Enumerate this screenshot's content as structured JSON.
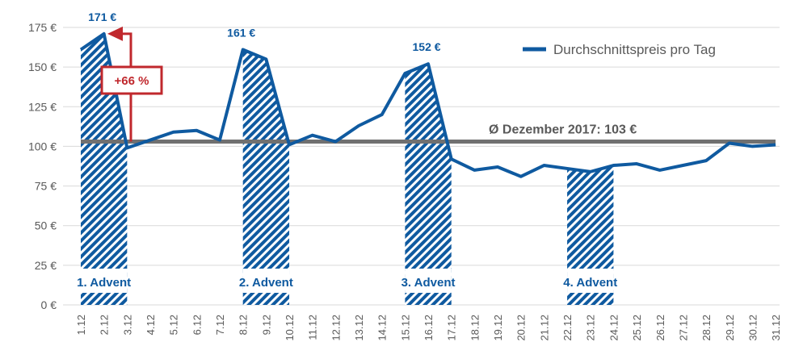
{
  "chart_data": {
    "type": "line",
    "title": "",
    "xlabel": "",
    "ylabel": "",
    "ylim": [
      0,
      175
    ],
    "yticks": [
      0,
      25,
      50,
      75,
      100,
      125,
      150,
      175
    ],
    "ytick_labels": [
      "0 €",
      "25 €",
      "50 €",
      "75 €",
      "100 €",
      "125 €",
      "150 €",
      "175 €"
    ],
    "categories": [
      "1.12",
      "2.12",
      "3.12",
      "4.12",
      "5.12",
      "6.12",
      "7.12",
      "8.12",
      "9.12",
      "10.12",
      "11.12",
      "12.12",
      "13.12",
      "14.12",
      "15.12",
      "16.12",
      "17.12",
      "18.12",
      "19.12",
      "20.12",
      "21.12",
      "22.12",
      "23.12",
      "24.12",
      "25.12",
      "26.12",
      "27.12",
      "28.12",
      "29.12",
      "30.12",
      "31.12"
    ],
    "series": [
      {
        "name": "Durchschnittspreis pro Tag",
        "color": "#0f5aa0",
        "values": [
          161,
          171,
          99,
          104,
          109,
          110,
          104,
          161,
          155,
          101,
          107,
          103,
          113,
          120,
          146,
          152,
          92,
          85,
          87,
          81,
          88,
          86,
          84,
          88,
          89,
          85,
          88,
          91,
          102,
          100,
          101
        ]
      }
    ],
    "average": {
      "value": 103,
      "label": "Ø Dezember 2017: 103 €",
      "color": "#707070"
    },
    "highlights": [
      {
        "label": "1. Advent",
        "from": "1.12",
        "to": "3.12"
      },
      {
        "label": "2. Advent",
        "from": "8.12",
        "to": "10.12"
      },
      {
        "label": "3. Advent",
        "from": "15.12",
        "to": "17.12"
      },
      {
        "label": "4. Advent",
        "from": "22.12",
        "to": "24.12"
      }
    ],
    "data_labels": [
      {
        "category": "2.12",
        "text": "171 €"
      },
      {
        "category": "8.12",
        "text": "161 €"
      },
      {
        "category": "16.12",
        "text": "152 €"
      }
    ],
    "annotation": {
      "text": "+66 %",
      "color": "#c0282d"
    },
    "grid": true,
    "legend": "top-right"
  }
}
